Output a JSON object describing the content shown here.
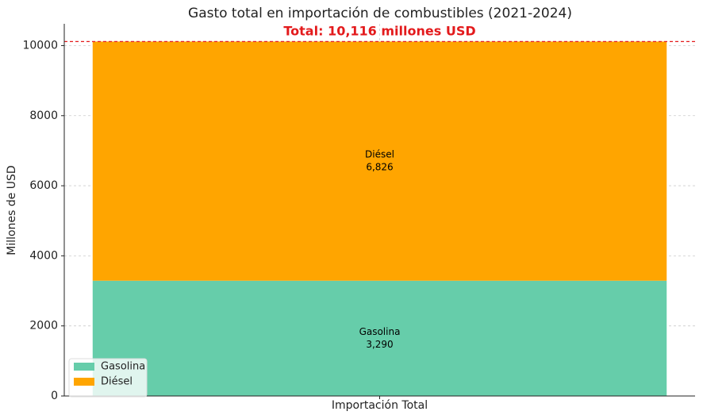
{
  "chart_data": {
    "type": "stacked-bar",
    "title": "Gasto total en importación de combustibles (2021-2024)",
    "ylabel": "Millones de USD",
    "categories": [
      "Importación Total"
    ],
    "series": [
      {
        "name": "Gasolina",
        "color": "#66cdaa",
        "values": [
          3290
        ],
        "value_labels": [
          "3,290"
        ]
      },
      {
        "name": "Diésel",
        "color": "#ffa500",
        "values": [
          6826
        ],
        "value_labels": [
          "6,826"
        ]
      }
    ],
    "reference_line": {
      "value": 10116,
      "label": "Total: 10,116 millones USD",
      "color": "#e31a1c"
    },
    "ylim": [
      0,
      10622
    ],
    "yticks": [
      0,
      2000,
      4000,
      6000,
      8000,
      10000
    ],
    "grid": true,
    "legend": "lower left"
  }
}
